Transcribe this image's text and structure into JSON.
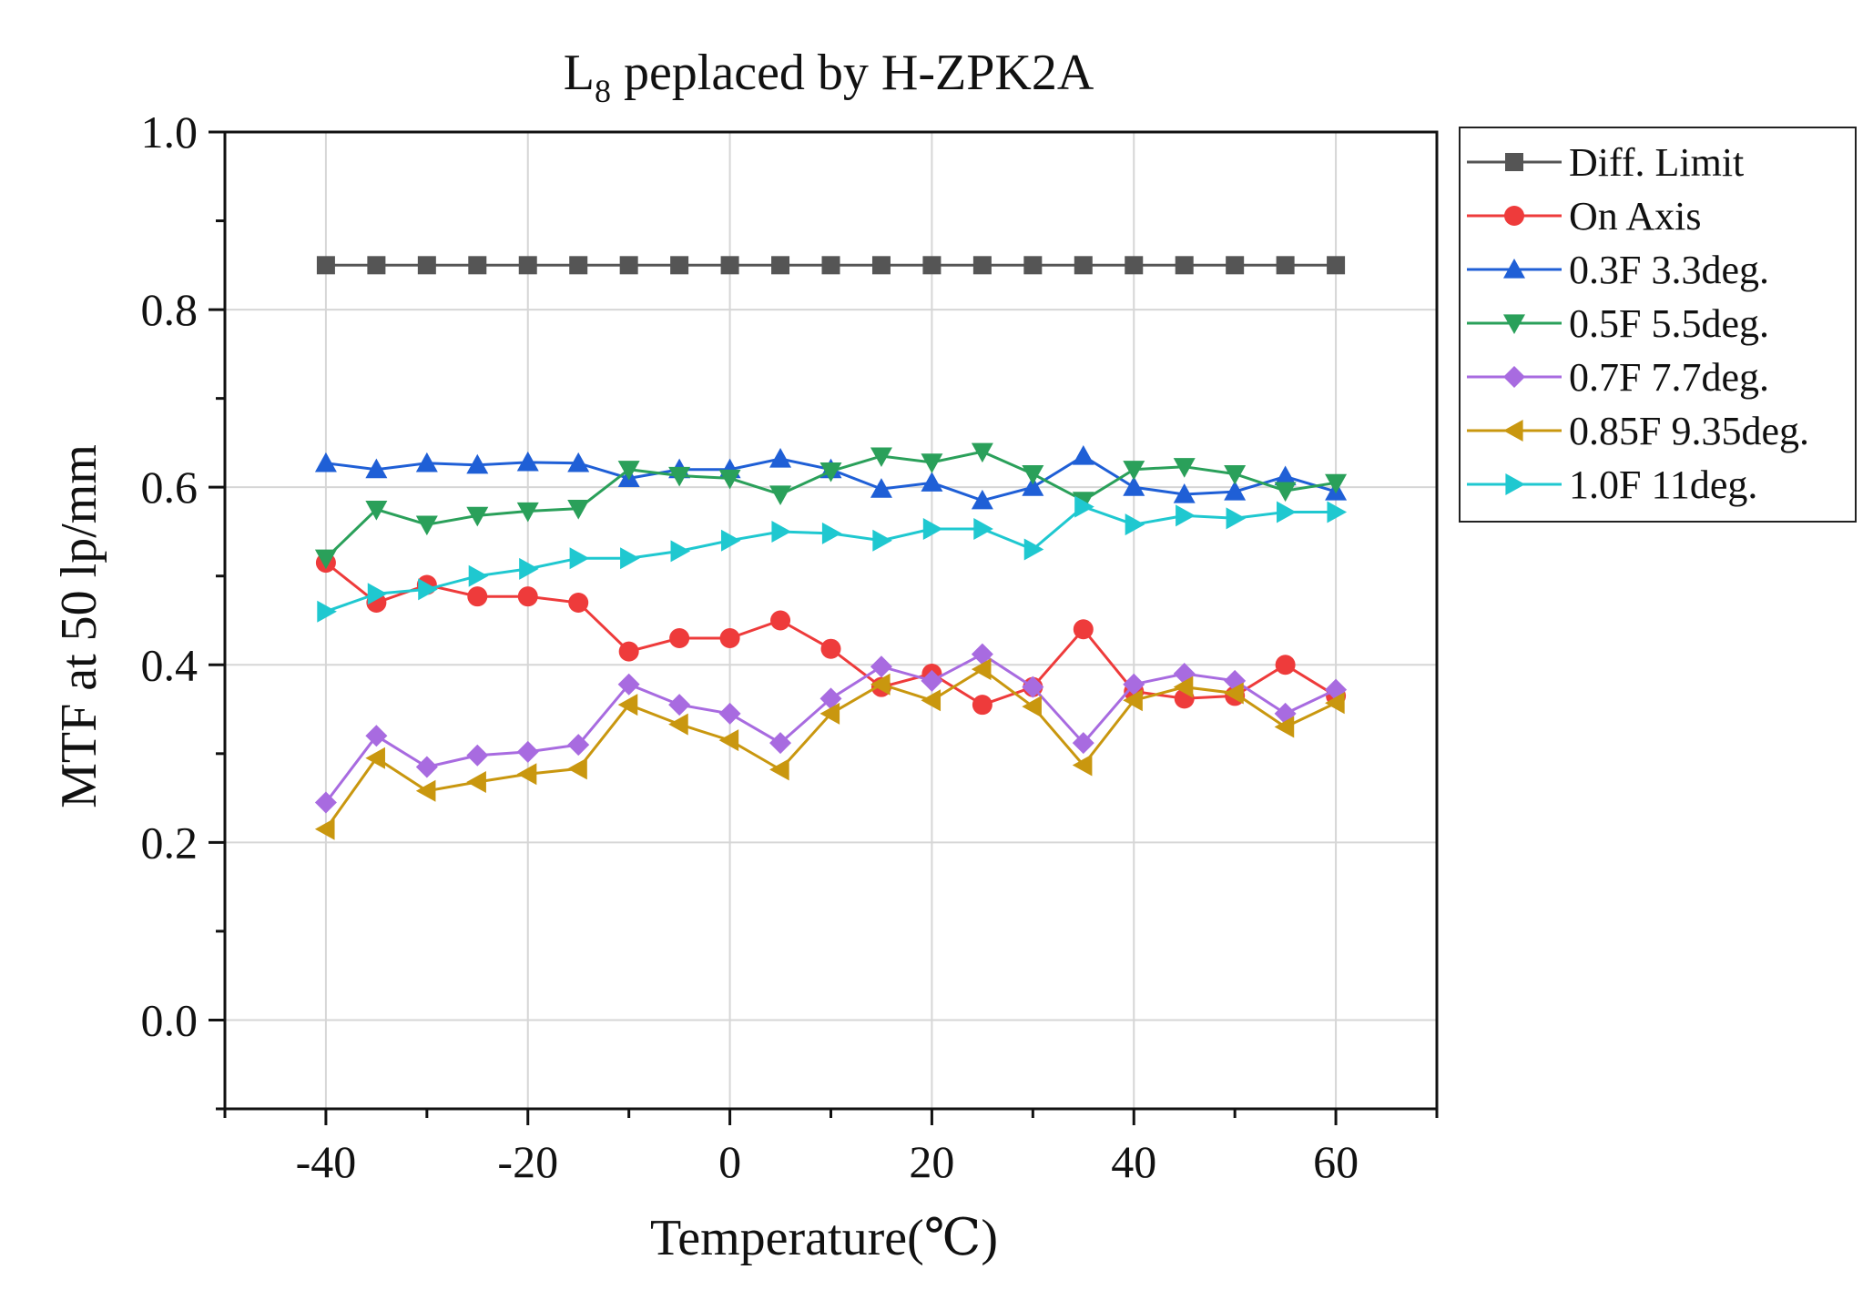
{
  "chart_data": {
    "type": "line",
    "title_main": "L",
    "title_sub": "8",
    "title_rest": " peplaced by H-ZPK2A",
    "xlabel": "Temperature(℃)",
    "ylabel": "MTF at 50 lp/mm",
    "xlim": [
      -50,
      70
    ],
    "ylim": [
      -0.1,
      1.0
    ],
    "xticks": [
      -40,
      -20,
      0,
      20,
      40,
      60
    ],
    "xtick_labels": [
      "-40",
      "-20",
      "0",
      "20",
      "40",
      "60"
    ],
    "yticks": [
      0.0,
      0.2,
      0.4,
      0.6,
      0.8,
      1.0
    ],
    "ytick_labels": [
      "0.0",
      "0.2",
      "0.4",
      "0.6",
      "0.8",
      "1.0"
    ],
    "grid": true,
    "legend_position": "outside-right-top",
    "x": [
      -40,
      -35,
      -30,
      -25,
      -20,
      -15,
      -10,
      -5,
      0,
      5,
      10,
      15,
      20,
      25,
      30,
      35,
      40,
      45,
      50,
      55,
      60
    ],
    "series": [
      {
        "name": "Diff. Limit",
        "color": "#555555",
        "marker": "square",
        "values": [
          0.85,
          0.85,
          0.85,
          0.85,
          0.85,
          0.85,
          0.85,
          0.85,
          0.85,
          0.85,
          0.85,
          0.85,
          0.85,
          0.85,
          0.85,
          0.85,
          0.85,
          0.85,
          0.85,
          0.85,
          0.85
        ]
      },
      {
        "name": "On Axis",
        "color": "#ee3b3b",
        "marker": "circle",
        "values": [
          0.515,
          0.47,
          0.49,
          0.477,
          0.477,
          0.47,
          0.415,
          0.43,
          0.43,
          0.45,
          0.418,
          0.375,
          0.39,
          0.355,
          0.375,
          0.44,
          0.37,
          0.362,
          0.365,
          0.4,
          0.365
        ]
      },
      {
        "name": "0.3F 3.3deg.",
        "color": "#1f5fd6",
        "marker": "triangle-up",
        "values": [
          0.627,
          0.62,
          0.627,
          0.625,
          0.628,
          0.627,
          0.61,
          0.62,
          0.62,
          0.632,
          0.62,
          0.598,
          0.605,
          0.585,
          0.6,
          0.635,
          0.6,
          0.592,
          0.595,
          0.612,
          0.595
        ]
      },
      {
        "name": "0.5F 5.5deg.",
        "color": "#2aa05a",
        "marker": "triangle-down",
        "values": [
          0.52,
          0.575,
          0.558,
          0.568,
          0.573,
          0.576,
          0.62,
          0.613,
          0.61,
          0.592,
          0.618,
          0.635,
          0.628,
          0.64,
          0.615,
          0.585,
          0.62,
          0.623,
          0.615,
          0.596,
          0.605
        ]
      },
      {
        "name": "0.7F 7.7deg.",
        "color": "#a86be0",
        "marker": "diamond",
        "values": [
          0.245,
          0.32,
          0.285,
          0.298,
          0.302,
          0.31,
          0.378,
          0.355,
          0.345,
          0.312,
          0.362,
          0.398,
          0.382,
          0.412,
          0.375,
          0.312,
          0.378,
          0.39,
          0.382,
          0.345,
          0.372
        ]
      },
      {
        "name": "0.85F 9.35deg.",
        "color": "#c9970f",
        "marker": "triangle-left",
        "values": [
          0.215,
          0.295,
          0.258,
          0.268,
          0.277,
          0.283,
          0.355,
          0.333,
          0.315,
          0.282,
          0.345,
          0.378,
          0.36,
          0.395,
          0.353,
          0.287,
          0.36,
          0.375,
          0.368,
          0.33,
          0.357
        ]
      },
      {
        "name": "1.0F 11deg.",
        "color": "#1fc8d0",
        "marker": "triangle-right",
        "values": [
          0.46,
          0.48,
          0.485,
          0.5,
          0.508,
          0.52,
          0.52,
          0.528,
          0.54,
          0.55,
          0.548,
          0.54,
          0.553,
          0.553,
          0.53,
          0.578,
          0.558,
          0.568,
          0.565,
          0.572,
          0.572
        ]
      }
    ]
  }
}
